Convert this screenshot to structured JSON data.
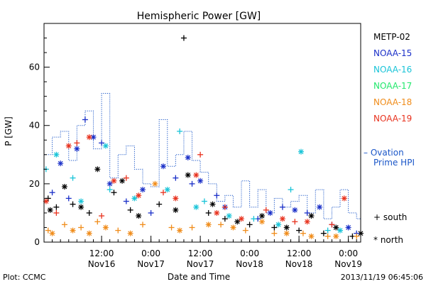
{
  "chart_data": {
    "type": "scatter",
    "title": "Hemispheric Power [GW]",
    "ylabel": "P [GW]",
    "xlabel": "Date and Time",
    "ylim": [
      0,
      75
    ],
    "xlim": [
      "2013-11-15T22:00",
      "2013-11-19T03:00"
    ],
    "y_ticks": [
      0,
      20,
      40,
      60
    ],
    "x_ticks": [
      {
        "x": "2013-11-16T12:00",
        "time": "12:00",
        "date": "Nov16"
      },
      {
        "x": "2013-11-17T00:00",
        "time": "0:00",
        "date": "Nov17"
      },
      {
        "x": "2013-11-17T12:00",
        "time": "12:00",
        "date": "Nov17"
      },
      {
        "x": "2013-11-18T00:00",
        "time": "0:00",
        "date": "Nov18"
      },
      {
        "x": "2013-11-18T12:00",
        "time": "12:00",
        "date": "Nov18"
      },
      {
        "x": "2013-11-19T00:00",
        "time": "0:00",
        "date": "Nov19"
      }
    ],
    "series": [
      {
        "name": "METP-02",
        "color": "#000000",
        "south": [
          [
            "2013-11-15T23:00",
            15
          ],
          [
            "2013-11-16T01:00",
            12
          ],
          [
            "2013-11-16T05:00",
            13
          ],
          [
            "2013-11-16T09:00",
            10
          ],
          [
            "2013-11-16T15:00",
            17
          ],
          [
            "2013-11-16T19:00",
            11
          ],
          [
            "2013-11-17T02:00",
            13
          ],
          [
            "2013-11-17T08:00",
            70
          ],
          [
            "2013-11-17T14:00",
            10
          ],
          [
            "2013-11-17T18:00",
            8
          ],
          [
            "2013-11-18T00:00",
            6
          ],
          [
            "2013-11-18T06:00",
            5
          ],
          [
            "2013-11-18T12:00",
            4
          ],
          [
            "2013-11-18T18:00",
            3
          ],
          [
            "2013-11-19T01:00",
            2
          ]
        ],
        "north": [
          [
            "2013-11-15T23:30",
            11
          ],
          [
            "2013-11-16T03:00",
            19
          ],
          [
            "2013-11-16T07:00",
            12
          ],
          [
            "2013-11-16T11:00",
            25
          ],
          [
            "2013-11-16T17:00",
            21
          ],
          [
            "2013-11-16T21:00",
            9
          ],
          [
            "2013-11-17T06:00",
            11
          ],
          [
            "2013-11-17T09:00",
            23
          ],
          [
            "2013-11-17T15:00",
            13
          ],
          [
            "2013-11-17T21:00",
            7
          ],
          [
            "2013-11-18T03:00",
            9
          ],
          [
            "2013-11-18T09:00",
            5
          ],
          [
            "2013-11-18T15:00",
            9
          ],
          [
            "2013-11-18T21:00",
            5
          ],
          [
            "2013-11-19T03:00",
            3
          ]
        ]
      },
      {
        "name": "NOAA-15",
        "color": "#1a2fc8",
        "south": [
          [
            "2013-11-16T00:00",
            17
          ],
          [
            "2013-11-16T04:00",
            15
          ],
          [
            "2013-11-16T08:00",
            42
          ],
          [
            "2013-11-16T12:00",
            34
          ],
          [
            "2013-11-16T18:00",
            14
          ],
          [
            "2013-11-17T00:00",
            10
          ],
          [
            "2013-11-17T06:00",
            22
          ],
          [
            "2013-11-17T10:00",
            20
          ],
          [
            "2013-11-17T16:00",
            16
          ],
          [
            "2013-11-18T02:00",
            8
          ],
          [
            "2013-11-18T08:00",
            12
          ],
          [
            "2013-11-18T14:00",
            10
          ],
          [
            "2013-11-18T20:00",
            6
          ],
          [
            "2013-11-19T02:00",
            3
          ]
        ],
        "north": [
          [
            "2013-11-16T02:00",
            27
          ],
          [
            "2013-11-16T06:00",
            32
          ],
          [
            "2013-11-16T10:00",
            36
          ],
          [
            "2013-11-16T14:00",
            20
          ],
          [
            "2013-11-16T22:00",
            18
          ],
          [
            "2013-11-17T03:00",
            26
          ],
          [
            "2013-11-17T09:00",
            29
          ],
          [
            "2013-11-17T12:00",
            21
          ],
          [
            "2013-11-17T18:00",
            12
          ],
          [
            "2013-11-18T05:00",
            10
          ],
          [
            "2013-11-18T11:00",
            11
          ],
          [
            "2013-11-18T17:00",
            12
          ],
          [
            "2013-11-19T00:00",
            5
          ]
        ]
      },
      {
        "name": "NOAA-16",
        "color": "#19c4d8",
        "south": [
          [
            "2013-11-15T22:30",
            25
          ],
          [
            "2013-11-16T05:00",
            22
          ],
          [
            "2013-11-16T14:00",
            18
          ],
          [
            "2013-11-17T07:00",
            38
          ],
          [
            "2013-11-17T13:00",
            14
          ],
          [
            "2013-11-18T01:00",
            8
          ],
          [
            "2013-11-18T10:00",
            18
          ],
          [
            "2013-11-18T19:00",
            4
          ]
        ],
        "north": [
          [
            "2013-11-16T01:00",
            30
          ],
          [
            "2013-11-16T07:00",
            14
          ],
          [
            "2013-11-16T13:00",
            33
          ],
          [
            "2013-11-16T20:00",
            15
          ],
          [
            "2013-11-17T04:00",
            18
          ],
          [
            "2013-11-17T11:00",
            12
          ],
          [
            "2013-11-17T19:00",
            9
          ],
          [
            "2013-11-18T07:00",
            6
          ],
          [
            "2013-11-18T12:30",
            31
          ],
          [
            "2013-11-18T22:00",
            4
          ]
        ]
      },
      {
        "name": "NOAA-17",
        "color": "#22e86c",
        "south": [],
        "north": []
      },
      {
        "name": "NOAA-18",
        "color": "#f08c1a",
        "south": [
          [
            "2013-11-15T23:00",
            4
          ],
          [
            "2013-11-16T03:00",
            6
          ],
          [
            "2013-11-16T07:00",
            5
          ],
          [
            "2013-11-16T11:00",
            7
          ],
          [
            "2013-11-16T16:00",
            4
          ],
          [
            "2013-11-16T22:00",
            6
          ],
          [
            "2013-11-17T05:00",
            5
          ],
          [
            "2013-11-17T10:00",
            5
          ],
          [
            "2013-11-17T17:00",
            6
          ],
          [
            "2013-11-17T23:00",
            4
          ],
          [
            "2013-11-18T06:00",
            3
          ],
          [
            "2013-11-18T13:00",
            3
          ],
          [
            "2013-11-18T19:00",
            2
          ],
          [
            "2013-11-19T02:00",
            2
          ]
        ],
        "north": [
          [
            "2013-11-16T00:00",
            3
          ],
          [
            "2013-11-16T05:00",
            4
          ],
          [
            "2013-11-16T09:00",
            3
          ],
          [
            "2013-11-16T13:00",
            5
          ],
          [
            "2013-11-16T19:00",
            3
          ],
          [
            "2013-11-17T01:00",
            20
          ],
          [
            "2013-11-17T07:00",
            4
          ],
          [
            "2013-11-17T14:00",
            6
          ],
          [
            "2013-11-17T20:00",
            5
          ],
          [
            "2013-11-18T03:00",
            7
          ],
          [
            "2013-11-18T09:00",
            3
          ],
          [
            "2013-11-18T15:00",
            2
          ],
          [
            "2013-11-18T21:00",
            2
          ]
        ]
      },
      {
        "name": "NOAA-19",
        "color": "#e8321e",
        "south": [
          [
            "2013-11-16T01:00",
            10
          ],
          [
            "2013-11-16T06:00",
            34
          ],
          [
            "2013-11-16T12:00",
            9
          ],
          [
            "2013-11-16T18:00",
            22
          ],
          [
            "2013-11-17T03:00",
            17
          ],
          [
            "2013-11-17T12:00",
            30
          ],
          [
            "2013-11-17T18:00",
            12
          ],
          [
            "2013-11-18T04:00",
            11
          ],
          [
            "2013-11-18T11:00",
            7
          ],
          [
            "2013-11-18T20:00",
            6
          ]
        ],
        "north": [
          [
            "2013-11-15T22:30",
            14
          ],
          [
            "2013-11-16T04:00",
            33
          ],
          [
            "2013-11-16T09:00",
            36
          ],
          [
            "2013-11-16T15:00",
            21
          ],
          [
            "2013-11-16T21:00",
            16
          ],
          [
            "2013-11-17T06:00",
            15
          ],
          [
            "2013-11-17T11:00",
            23
          ],
          [
            "2013-11-17T16:00",
            10
          ],
          [
            "2013-11-17T22:00",
            8
          ],
          [
            "2013-11-18T08:00",
            8
          ],
          [
            "2013-11-18T14:00",
            7
          ],
          [
            "2013-11-18T23:00",
            15
          ]
        ]
      }
    ],
    "ovation": {
      "name": "– Ovation Prime HPI",
      "legend_line1": "– Ovation",
      "legend_line2": "Prime HPI",
      "color": "#1a56c8",
      "x": [
        "2013-11-15T22:00",
        "2013-11-16T00:00",
        "2013-11-16T02:00",
        "2013-11-16T04:00",
        "2013-11-16T06:00",
        "2013-11-16T08:00",
        "2013-11-16T10:00",
        "2013-11-16T12:00",
        "2013-11-16T14:00",
        "2013-11-16T16:00",
        "2013-11-16T18:00",
        "2013-11-16T20:00",
        "2013-11-16T22:00",
        "2013-11-17T00:00",
        "2013-11-17T02:00",
        "2013-11-17T04:00",
        "2013-11-17T06:00",
        "2013-11-17T08:00",
        "2013-11-17T10:00",
        "2013-11-17T12:00",
        "2013-11-17T14:00",
        "2013-11-17T16:00",
        "2013-11-17T18:00",
        "2013-11-17T20:00",
        "2013-11-17T22:00",
        "2013-11-18T00:00",
        "2013-11-18T02:00",
        "2013-11-18T04:00",
        "2013-11-18T06:00",
        "2013-11-18T08:00",
        "2013-11-18T10:00",
        "2013-11-18T12:00",
        "2013-11-18T14:00",
        "2013-11-18T16:00",
        "2013-11-18T18:00",
        "2013-11-18T20:00",
        "2013-11-18T22:00",
        "2013-11-19T00:00",
        "2013-11-19T02:00",
        "2013-11-19T03:00"
      ],
      "y": [
        30,
        36,
        38,
        28,
        40,
        45,
        32,
        51,
        22,
        30,
        33,
        25,
        20,
        19,
        42,
        26,
        30,
        38,
        28,
        24,
        20,
        14,
        16,
        12,
        21,
        12,
        18,
        10,
        15,
        12,
        14,
        16,
        10,
        18,
        8,
        12,
        18,
        10,
        8,
        17
      ]
    },
    "marker_legend": {
      "south": "+ south",
      "north": "* north"
    }
  },
  "footer": {
    "plot_credit": "Plot: CCMC",
    "timestamp": "2013/11/19 06:45:06"
  }
}
